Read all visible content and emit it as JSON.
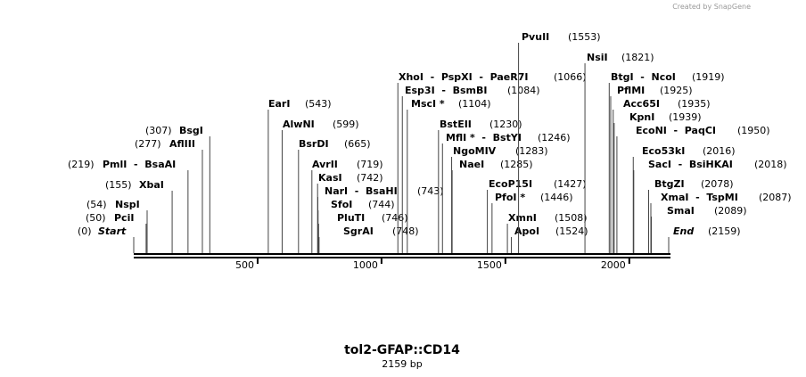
{
  "credit": "Created by SnapGene",
  "map": {
    "title": "tol2-GFAP::CD14",
    "length": 2159,
    "length_label": "2159 bp",
    "ruler_ticks": [
      500,
      1000,
      1500,
      2000
    ],
    "sites": [
      {
        "label": "Start",
        "position": 0,
        "position_label": "(0)"
      },
      {
        "label": "PciI",
        "position": 50,
        "position_label": "(50)"
      },
      {
        "label": "NspI",
        "position": 54,
        "position_label": "(54)"
      },
      {
        "label": "XbaI",
        "position": 155,
        "position_label": "(155)"
      },
      {
        "label": "PmlI  -  BsaAI",
        "position": 219,
        "position_label": "(219)"
      },
      {
        "label": "AflIII",
        "position": 277,
        "position_label": "(277)"
      },
      {
        "label": "BsgI",
        "position": 307,
        "position_label": "(307)"
      },
      {
        "label": "EarI",
        "position": 543,
        "position_label": "(543)"
      },
      {
        "label": "AlwNI",
        "position": 599,
        "position_label": "(599)"
      },
      {
        "label": "BsrDI",
        "position": 665,
        "position_label": "(665)"
      },
      {
        "label": "AvrII",
        "position": 719,
        "position_label": "(719)"
      },
      {
        "label": "KasI",
        "position": 742,
        "position_label": "(742)"
      },
      {
        "label": "NarI  -  BsaHI",
        "position": 743,
        "position_label": "(743)"
      },
      {
        "label": "SfoI",
        "position": 744,
        "position_label": "(744)"
      },
      {
        "label": "PluTI",
        "position": 746,
        "position_label": "(746)"
      },
      {
        "label": "SgrAI",
        "position": 748,
        "position_label": "(748)"
      },
      {
        "label": "XhoI  -  PspXI  -  PaeR7I",
        "position": 1066,
        "position_label": "(1066)"
      },
      {
        "label": "Esp3I  -  BsmBI",
        "position": 1084,
        "position_label": "(1084)"
      },
      {
        "label": "MscI *",
        "position": 1104,
        "position_label": "(1104)"
      },
      {
        "label": "BstEII",
        "position": 1230,
        "position_label": "(1230)"
      },
      {
        "label": "MflI *  -  BstYI",
        "position": 1246,
        "position_label": "(1246)"
      },
      {
        "label": "NgoMIV",
        "position": 1283,
        "position_label": "(1283)"
      },
      {
        "label": "NaeI",
        "position": 1285,
        "position_label": "(1285)"
      },
      {
        "label": "EcoP15I",
        "position": 1427,
        "position_label": "(1427)"
      },
      {
        "label": "PfoI *",
        "position": 1446,
        "position_label": "(1446)"
      },
      {
        "label": "XmnI",
        "position": 1508,
        "position_label": "(1508)"
      },
      {
        "label": "ApoI",
        "position": 1524,
        "position_label": "(1524)"
      },
      {
        "label": "PvuII",
        "position": 1553,
        "position_label": "(1553)"
      },
      {
        "label": "NsiI",
        "position": 1821,
        "position_label": "(1821)"
      },
      {
        "label": "BtgI  -  NcoI",
        "position": 1919,
        "position_label": "(1919)"
      },
      {
        "label": "PflMI",
        "position": 1925,
        "position_label": "(1925)"
      },
      {
        "label": "Acc65I",
        "position": 1935,
        "position_label": "(1935)"
      },
      {
        "label": "KpnI",
        "position": 1939,
        "position_label": "(1939)"
      },
      {
        "label": "EcoNI  -  PaqCI",
        "position": 1950,
        "position_label": "(1950)"
      },
      {
        "label": "Eco53kI",
        "position": 2016,
        "position_label": "(2016)"
      },
      {
        "label": "SacI  -  BsiHKAI",
        "position": 2018,
        "position_label": "(2018)"
      },
      {
        "label": "BtgZI",
        "position": 2078,
        "position_label": "(2078)"
      },
      {
        "label": "XmaI  -  TspMI",
        "position": 2087,
        "position_label": "(2087)"
      },
      {
        "label": "SmaI",
        "position": 2089,
        "position_label": "(2089)"
      },
      {
        "label": "End",
        "position": 2159,
        "position_label": "(2159)"
      }
    ]
  }
}
